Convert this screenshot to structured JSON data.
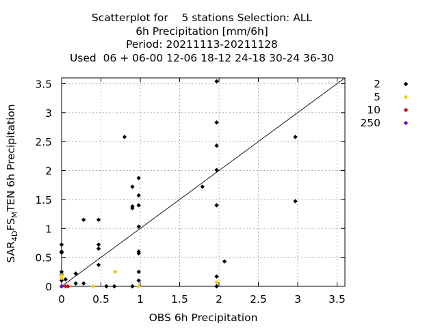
{
  "titles": [
    "Scatterplot for    5 stations Selection: ALL",
    "6h Precipitation [mm/6h]",
    "Period: 20211113-20211128",
    "Used  06 + 06-00 12-06 18-12 24-18 30-24 36-30"
  ],
  "chart_data": {
    "type": "scatter",
    "xlabel": "OBS 6h Precipitation",
    "ylabel": {
      "base": "SAR",
      "sub1": "4D",
      "mid": "FS",
      "sub2": "M",
      "tail": "TEN 6h Precipitation"
    },
    "xlim": [
      0,
      3.6
    ],
    "ylim": [
      0,
      3.6
    ],
    "xticks": [
      0,
      0.5,
      1,
      1.5,
      2,
      2.5,
      3,
      3.5
    ],
    "xtick_labels": [
      "0",
      "0.5",
      "1",
      "1.5",
      "2",
      "2.5",
      "3",
      "3.5"
    ],
    "yticks": [
      0,
      0.5,
      1,
      1.5,
      2,
      2.5,
      3,
      3.5
    ],
    "ytick_labels": [
      "0",
      "0.5",
      "1",
      "1.5",
      "2",
      "2.5",
      "3",
      "3.5"
    ],
    "grid": true,
    "diagonal": true,
    "legend_position": "right",
    "series": [
      {
        "name": "2",
        "color": "#000000",
        "points": [
          [
            0,
            0
          ],
          [
            0,
            0.1
          ],
          [
            0,
            0.2
          ],
          [
            0,
            0.25
          ],
          [
            0,
            0.58
          ],
          [
            0,
            0.6
          ],
          [
            0,
            0.72
          ],
          [
            0.05,
            0.12
          ],
          [
            0.18,
            0.05
          ],
          [
            0.18,
            0.22
          ],
          [
            0.28,
            0.05
          ],
          [
            0.28,
            1.15
          ],
          [
            0.47,
            0.37
          ],
          [
            0.47,
            0.65
          ],
          [
            0.47,
            0.72
          ],
          [
            0.47,
            1.15
          ],
          [
            0.57,
            0
          ],
          [
            0.67,
            0
          ],
          [
            0.8,
            2.58
          ],
          [
            0.9,
            0
          ],
          [
            0.9,
            1.35
          ],
          [
            0.9,
            1.38
          ],
          [
            0.9,
            1.72
          ],
          [
            0.98,
            0.1
          ],
          [
            0.98,
            0.25
          ],
          [
            0.98,
            0.57
          ],
          [
            0.98,
            0.6
          ],
          [
            0.98,
            1.03
          ],
          [
            0.98,
            1.4
          ],
          [
            0.98,
            1.57
          ],
          [
            0.98,
            1.87
          ],
          [
            1.79,
            1.72
          ],
          [
            1.97,
            0
          ],
          [
            1.97,
            0.17
          ],
          [
            1.97,
            1.4
          ],
          [
            1.97,
            2.01
          ],
          [
            1.97,
            2.43
          ],
          [
            1.97,
            2.83
          ],
          [
            1.97,
            3.54
          ],
          [
            2.07,
            0.43
          ],
          [
            2.97,
            1.47
          ],
          [
            2.97,
            2.58
          ]
        ]
      },
      {
        "name": "5",
        "color": "#f0d000",
        "points": [
          [
            0,
            0.14
          ],
          [
            0,
            0.19
          ],
          [
            0.4,
            0
          ],
          [
            0.68,
            0.25
          ],
          [
            0.98,
            0
          ],
          [
            1.97,
            0.07
          ]
        ]
      },
      {
        "name": "10",
        "color": "#e00000",
        "points": [
          [
            0.05,
            0
          ],
          [
            0.08,
            0
          ]
        ]
      },
      {
        "name": "250",
        "color": "#7a00c8",
        "points": [
          [
            0,
            0
          ]
        ]
      }
    ]
  }
}
